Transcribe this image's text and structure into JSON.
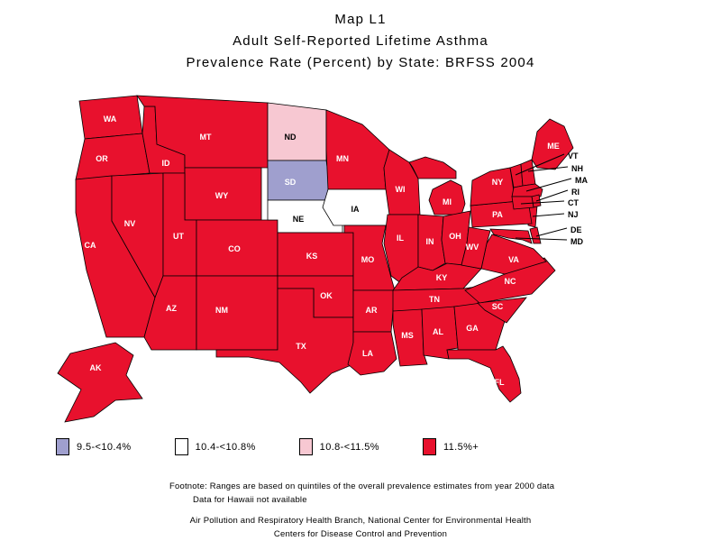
{
  "title": {
    "line1": "Map L1",
    "line2": "Adult Self-Reported Lifetime Asthma",
    "line3": "Prevalence Rate (Percent) by State: BRFSS 2004"
  },
  "legend": {
    "items": [
      {
        "label": "9.5-<10.4%",
        "color": "#9f9fce"
      },
      {
        "label": "10.4-<10.8%",
        "color": "#ffffff"
      },
      {
        "label": "10.8-<11.5%",
        "color": "#f7c8d2"
      },
      {
        "label": "11.5%+",
        "color": "#e8112d"
      }
    ]
  },
  "map": {
    "outline_color": "#000000",
    "label_on_dark": "#ffffff",
    "label_on_light": "#000000",
    "states": [
      {
        "abbr": "WA",
        "category": 3
      },
      {
        "abbr": "OR",
        "category": 3
      },
      {
        "abbr": "CA",
        "category": 3
      },
      {
        "abbr": "NV",
        "category": 3
      },
      {
        "abbr": "ID",
        "category": 3
      },
      {
        "abbr": "MT",
        "category": 3
      },
      {
        "abbr": "WY",
        "category": 3
      },
      {
        "abbr": "UT",
        "category": 3
      },
      {
        "abbr": "CO",
        "category": 3
      },
      {
        "abbr": "AZ",
        "category": 3
      },
      {
        "abbr": "NM",
        "category": 3
      },
      {
        "abbr": "ND",
        "category": 2
      },
      {
        "abbr": "SD",
        "category": 0
      },
      {
        "abbr": "NE",
        "category": 1
      },
      {
        "abbr": "KS",
        "category": 3
      },
      {
        "abbr": "OK",
        "category": 3
      },
      {
        "abbr": "TX",
        "category": 3
      },
      {
        "abbr": "MN",
        "category": 3
      },
      {
        "abbr": "IA",
        "category": 1
      },
      {
        "abbr": "MO",
        "category": 3
      },
      {
        "abbr": "AR",
        "category": 3
      },
      {
        "abbr": "LA",
        "category": 3
      },
      {
        "abbr": "WI",
        "category": 3
      },
      {
        "abbr": "IL",
        "category": 3
      },
      {
        "abbr": "MI",
        "category": 3
      },
      {
        "abbr": "IN",
        "category": 3
      },
      {
        "abbr": "OH",
        "category": 3
      },
      {
        "abbr": "KY",
        "category": 3
      },
      {
        "abbr": "TN",
        "category": 3
      },
      {
        "abbr": "MS",
        "category": 3
      },
      {
        "abbr": "AL",
        "category": 3
      },
      {
        "abbr": "GA",
        "category": 3
      },
      {
        "abbr": "FL",
        "category": 3
      },
      {
        "abbr": "SC",
        "category": 3
      },
      {
        "abbr": "NC",
        "category": 3
      },
      {
        "abbr": "VA",
        "category": 3
      },
      {
        "abbr": "WV",
        "category": 3
      },
      {
        "abbr": "MD",
        "category": 3
      },
      {
        "abbr": "DE",
        "category": 3
      },
      {
        "abbr": "NJ",
        "category": 3
      },
      {
        "abbr": "PA",
        "category": 3
      },
      {
        "abbr": "NY",
        "category": 3
      },
      {
        "abbr": "VT",
        "category": 3
      },
      {
        "abbr": "NH",
        "category": 3
      },
      {
        "abbr": "MA",
        "category": 3
      },
      {
        "abbr": "RI",
        "category": 3
      },
      {
        "abbr": "CT",
        "category": 3
      },
      {
        "abbr": "ME",
        "category": 3
      },
      {
        "abbr": "AK",
        "category": 3
      }
    ]
  },
  "footnote": {
    "line1": "Footnote: Ranges are based on quintiles of the overall prevalence estimates from year 2000 data",
    "line2": "Data for Hawaii not available"
  },
  "credit": {
    "line1": "Air Pollution and Respiratory Health Branch, National Center for Environmental Health",
    "line2": "Centers for Disease Control and Prevention"
  }
}
